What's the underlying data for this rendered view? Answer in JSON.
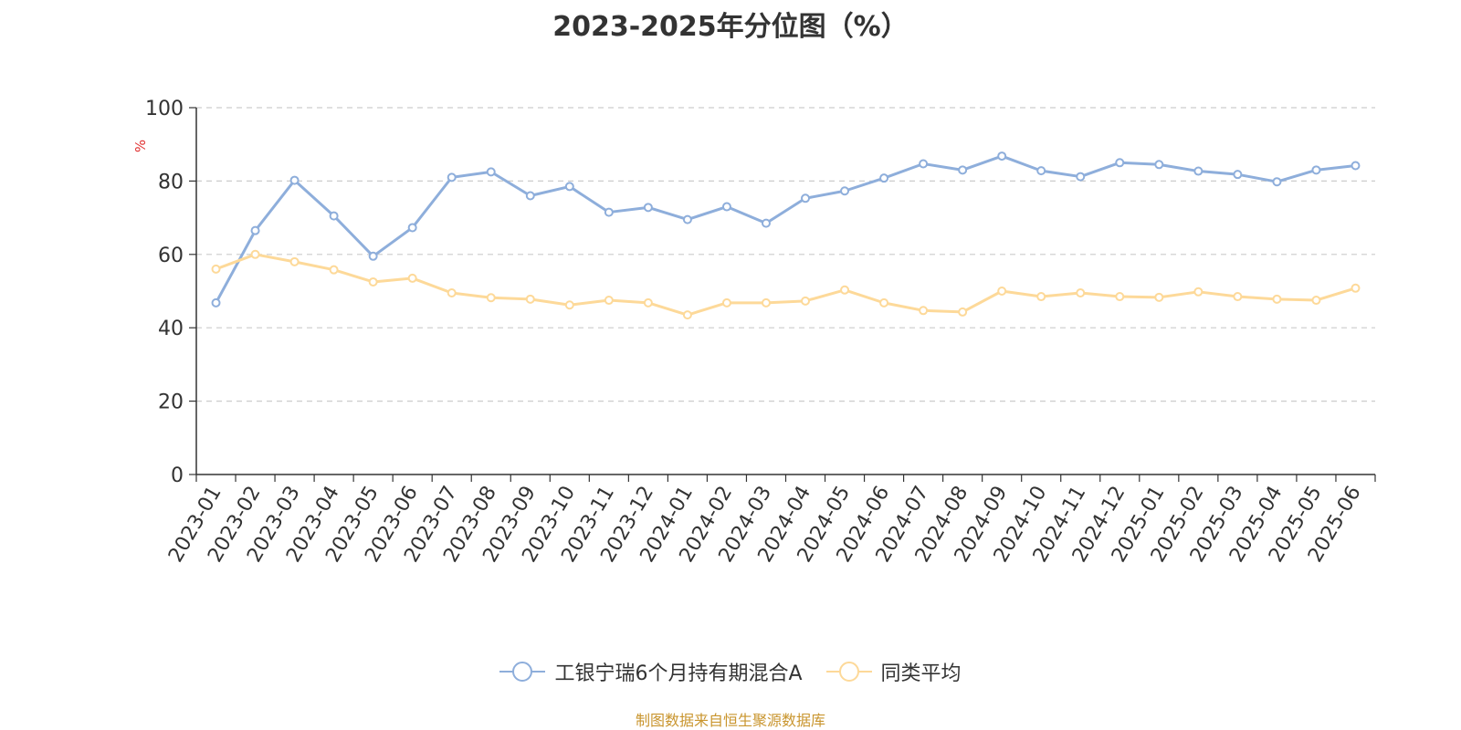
{
  "chart_data": {
    "type": "line",
    "title": "2023-2025年分位图（%）",
    "ylabel": "%",
    "ylim": [
      0,
      100
    ],
    "yticks": [
      0,
      20,
      40,
      60,
      80,
      100
    ],
    "grid": true,
    "legend_position": "bottom",
    "categories": [
      "2023-01",
      "2023-02",
      "2023-03",
      "2023-04",
      "2023-05",
      "2023-06",
      "2023-07",
      "2023-08",
      "2023-09",
      "2023-10",
      "2023-11",
      "2023-12",
      "2024-01",
      "2024-02",
      "2024-03",
      "2024-04",
      "2024-05",
      "2024-06",
      "2024-07",
      "2024-08",
      "2024-09",
      "2024-10",
      "2024-11",
      "2024-12",
      "2025-01",
      "2025-02",
      "2025-03",
      "2025-04",
      "2025-05",
      "2025-06"
    ],
    "series": [
      {
        "name": "工银宁瑞6个月持有期混合A",
        "color": "#8eaedb",
        "values": [
          46.8,
          66.5,
          80.2,
          70.5,
          59.5,
          67.3,
          81.0,
          82.5,
          76.0,
          78.5,
          71.5,
          72.8,
          69.5,
          73.0,
          68.5,
          75.3,
          77.3,
          80.8,
          84.7,
          83.0,
          86.8,
          82.8,
          81.2,
          85.0,
          84.5,
          82.7,
          81.8,
          79.8,
          83.0,
          84.2
        ]
      },
      {
        "name": "同类平均",
        "color": "#fdd999",
        "values": [
          56.0,
          60.0,
          58.0,
          55.8,
          52.5,
          53.5,
          49.5,
          48.2,
          47.8,
          46.2,
          47.5,
          46.8,
          43.5,
          46.8,
          46.8,
          47.3,
          50.3,
          46.8,
          44.7,
          44.3,
          50.0,
          48.5,
          49.5,
          48.5,
          48.3,
          49.8,
          48.5,
          47.8,
          47.5,
          50.8
        ]
      }
    ]
  },
  "source": "制图数据来自恒生聚源数据库"
}
